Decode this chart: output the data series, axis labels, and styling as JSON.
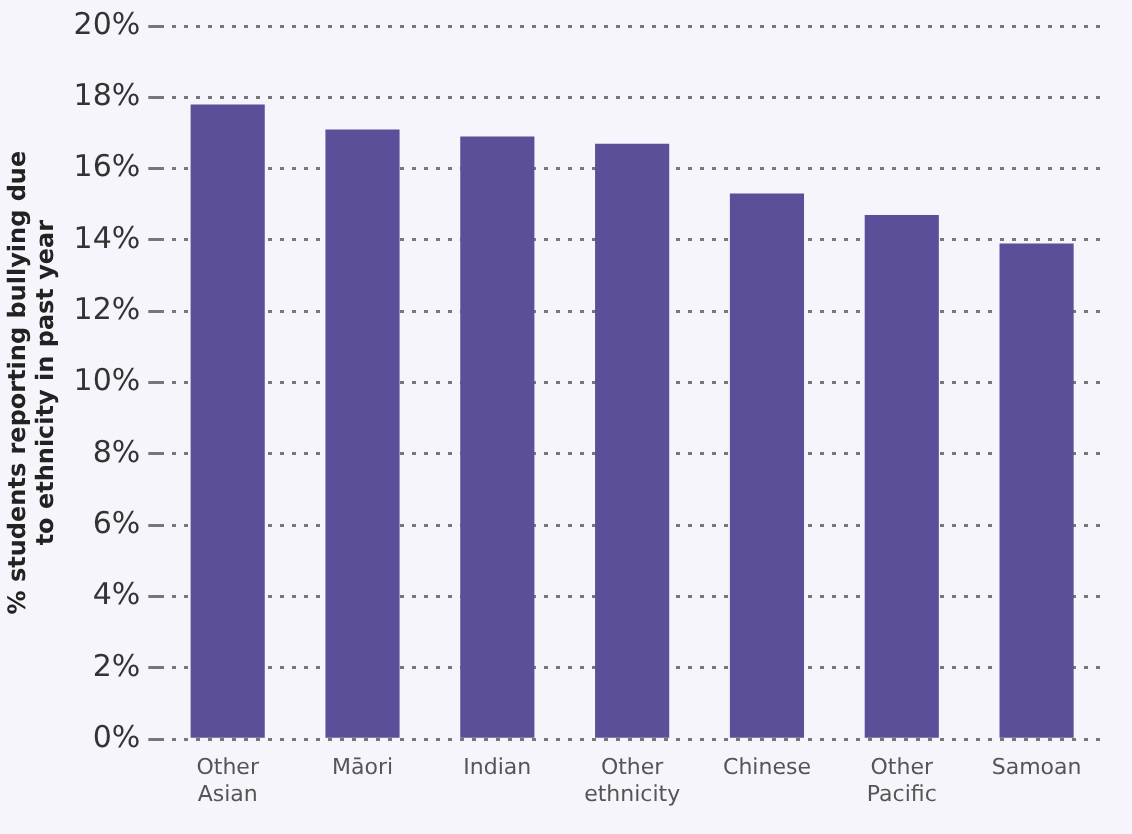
{
  "chart_data": {
    "type": "bar",
    "ylabel": "% students reporting bullying due to ethnicity in past year",
    "categories": [
      "Other Asian",
      "Māori",
      "Indian",
      "Other ethnicity",
      "Chinese",
      "Other Pacific",
      "Samoan"
    ],
    "values": [
      17.8,
      17.1,
      16.9,
      16.7,
      15.3,
      14.7,
      13.9
    ],
    "color": "#5c4f99",
    "ylim": [
      0,
      20
    ],
    "yticks": [
      {
        "value": 0,
        "label": "0%"
      },
      {
        "value": 2,
        "label": "2%"
      },
      {
        "value": 4,
        "label": "4%"
      },
      {
        "value": 6,
        "label": "6%"
      },
      {
        "value": 8,
        "label": "8%"
      },
      {
        "value": 10,
        "label": "10%"
      },
      {
        "value": 12,
        "label": "12%"
      },
      {
        "value": 14,
        "label": "14%"
      },
      {
        "value": 16,
        "label": "16%"
      },
      {
        "value": 18,
        "label": "18%"
      },
      {
        "value": 20,
        "label": "20%"
      }
    ],
    "grid": "y",
    "legend": false
  }
}
